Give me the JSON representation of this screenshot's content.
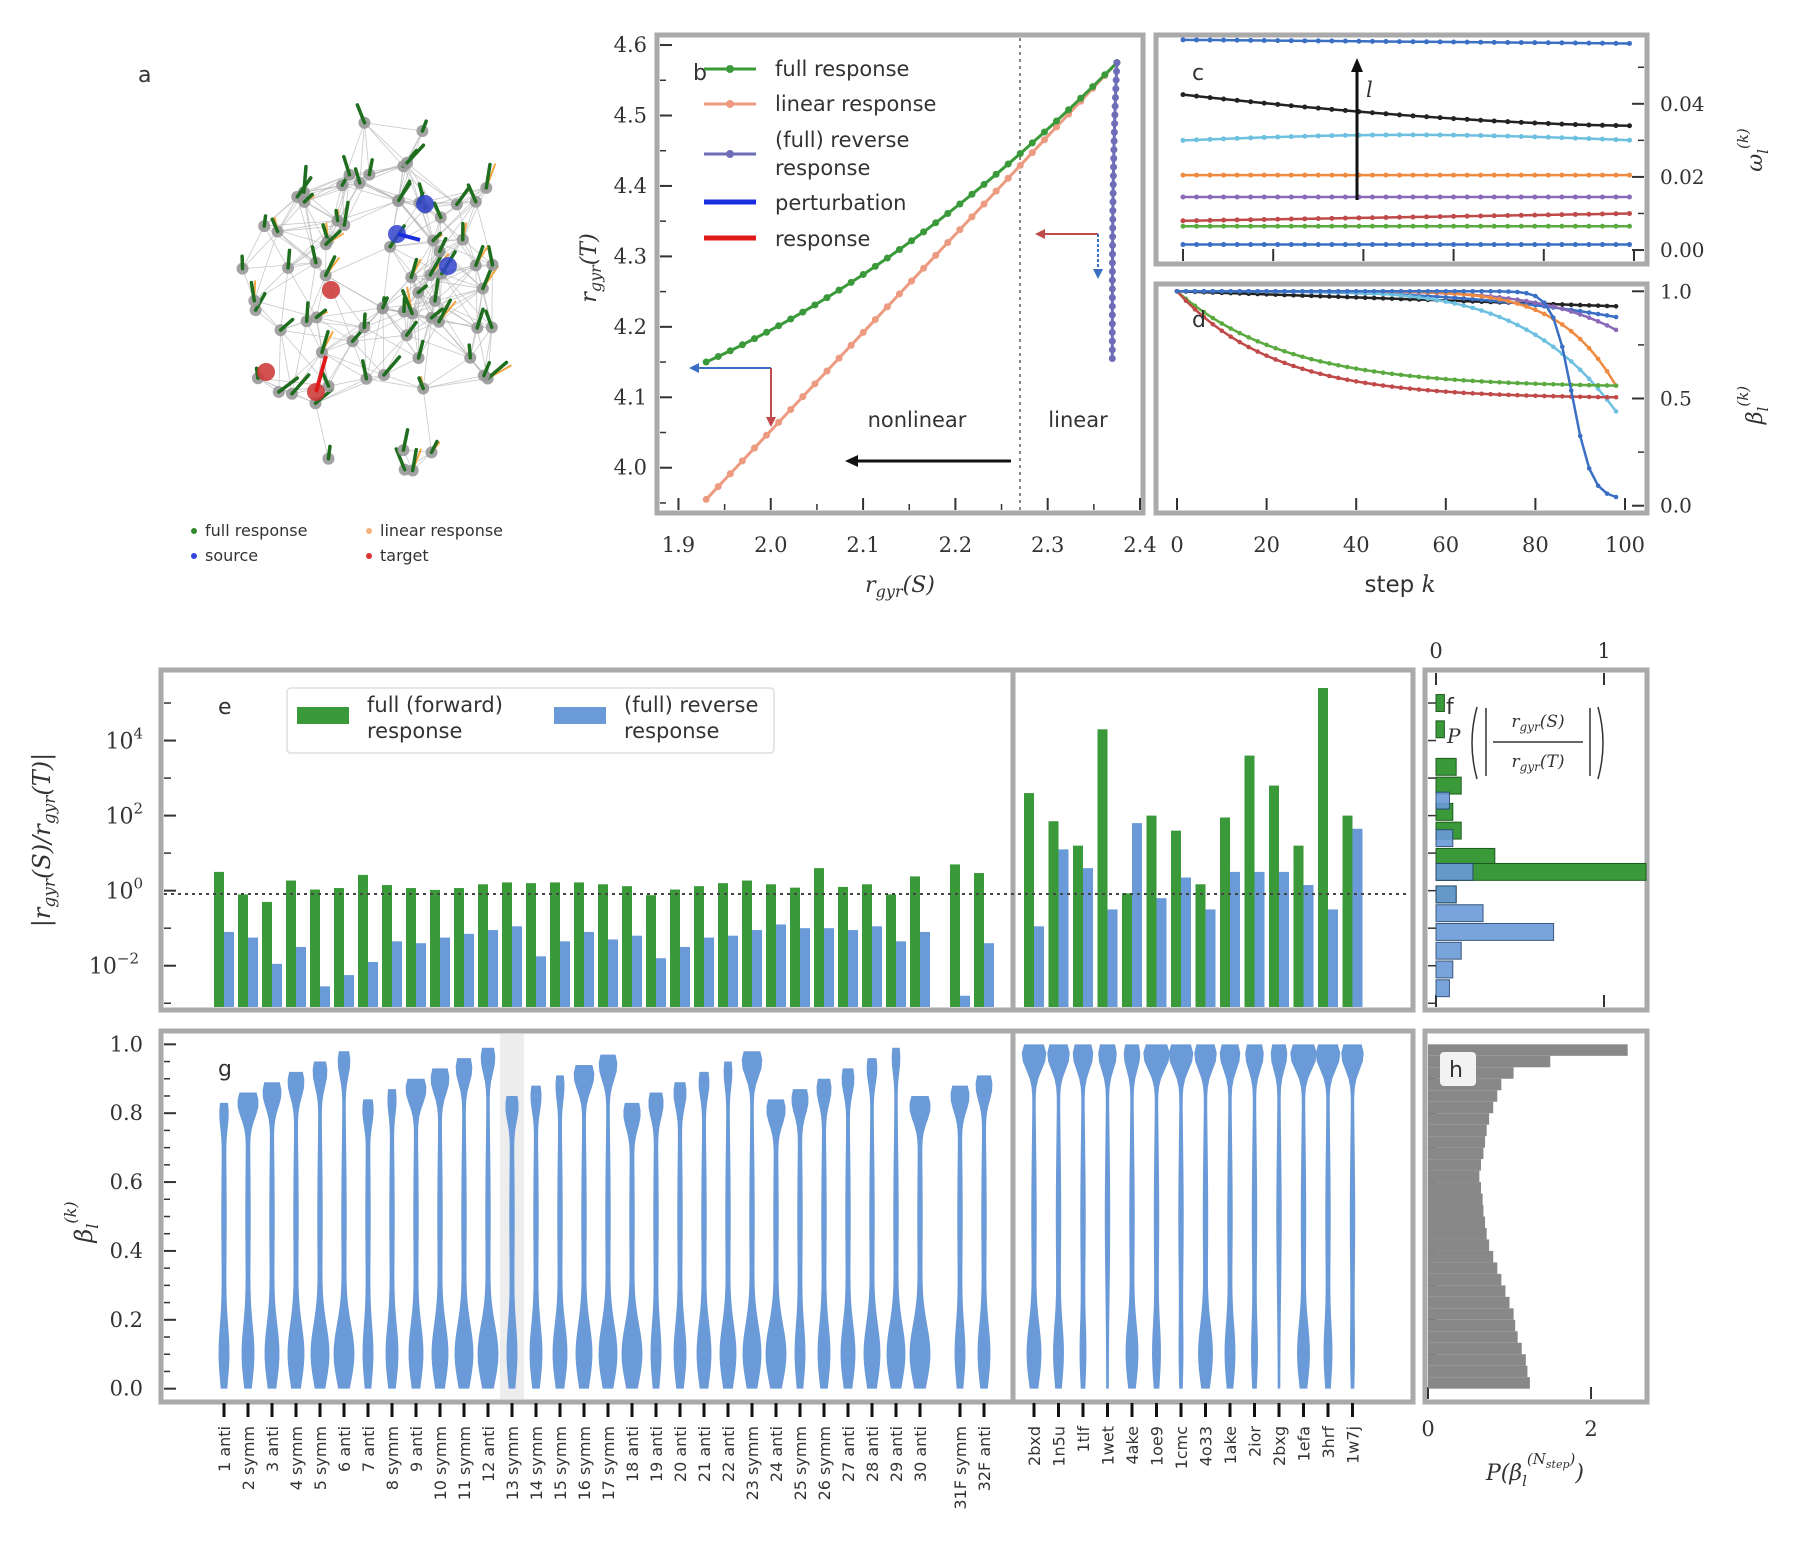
{
  "colors": {
    "green": "#3a9a3a",
    "salmon": "#ec9b80",
    "purple": "#6e6eb8",
    "blue": "#6a9ad8",
    "red": "#c04a4a",
    "gray": "#aaaaaa",
    "black": "#222222"
  },
  "panel_a": {
    "label": "a",
    "legend": [
      {
        "text": "full response",
        "color": "#2f8a2f"
      },
      {
        "text": "linear response",
        "color": "#f5b27a"
      },
      {
        "text": "source",
        "color": "#3344dd"
      },
      {
        "text": "target",
        "color": "#dd3333"
      }
    ]
  },
  "chart_data": [
    {
      "id": "b",
      "type": "line",
      "label": "b",
      "xlabel": "r_gyr(S)",
      "ylabel": "r_gyr(T)",
      "xlim": [
        1.88,
        2.4
      ],
      "ylim": [
        3.94,
        4.61
      ],
      "xticks": [
        "1.9",
        "2.0",
        "2.1",
        "2.2",
        "2.3",
        "2.4"
      ],
      "yticks": [
        "4.0",
        "4.1",
        "4.2",
        "4.3",
        "4.4",
        "4.5",
        "4.6"
      ],
      "legend": [
        "full response",
        "linear response",
        "(full) reverse",
        "response",
        "perturbation",
        "response"
      ],
      "annotations": [
        "nonlinear",
        "linear"
      ],
      "divider_x": 2.27,
      "series": [
        {
          "name": "full response",
          "x_range": [
            1.93,
            2.375
          ],
          "y_range": [
            4.15,
            4.575
          ],
          "shape": "concave"
        },
        {
          "name": "linear response",
          "x_range": [
            1.93,
            2.375
          ],
          "y_range": [
            3.955,
            4.575
          ],
          "shape": "linear"
        },
        {
          "name": "(full) reverse response",
          "x_range": [
            2.37,
            2.375
          ],
          "y_range": [
            4.155,
            4.575
          ],
          "shape": "vertical"
        }
      ]
    },
    {
      "id": "c",
      "type": "line",
      "label": "c",
      "ylabel": "omega_l^(k)",
      "ylim": [
        -0.003,
        0.058
      ],
      "yticks": [
        "0.00",
        "0.02",
        "0.04"
      ],
      "arrow_label": "l",
      "series": [
        {
          "color": "#3a6fc4",
          "start": 0.0575,
          "end": 0.0565
        },
        {
          "color": "#222222",
          "start": 0.0425,
          "end": 0.034
        },
        {
          "color": "#6ec0e0",
          "start": 0.03,
          "end": 0.03
        },
        {
          "color": "#f08a40",
          "start": 0.0205,
          "end": 0.0205
        },
        {
          "color": "#8a6ab8",
          "start": 0.0145,
          "end": 0.0145
        },
        {
          "color": "#c04a4a",
          "start": 0.008,
          "end": 0.01
        },
        {
          "color": "#5aaa40",
          "start": 0.0065,
          "end": 0.0065
        },
        {
          "color": "#3a6fc4",
          "start": 0.0015,
          "end": 0.0015
        }
      ]
    },
    {
      "id": "d",
      "type": "line",
      "label": "d",
      "xlabel": "step k",
      "ylabel": "beta_l^(k)",
      "xlim": [
        0,
        100
      ],
      "ylim": [
        -0.02,
        1.02
      ],
      "xticks": [
        "0",
        "20",
        "40",
        "60",
        "80",
        "100"
      ],
      "yticks": [
        "0.0",
        "0.5",
        "1.0"
      ],
      "series": [
        {
          "color": "#222222",
          "end": 0.93
        },
        {
          "color": "#3a6fc4",
          "end": 0.88
        },
        {
          "color": "#8a6ab8",
          "end": 0.82
        },
        {
          "color": "#f08a40",
          "end": 0.56
        },
        {
          "color": "#6ec0e0",
          "end": 0.44
        },
        {
          "color": "#5aaa40",
          "end": 0.56
        },
        {
          "color": "#c04a4a",
          "end": 0.5
        },
        {
          "color": "#3a6fc4",
          "end": 0.03
        }
      ]
    },
    {
      "id": "e",
      "type": "bar",
      "label": "e",
      "ylabel": "|r_gyr(S)/r_gyr(T)|",
      "yscale": "log",
      "ylim_log10": [
        -3.1,
        5.8
      ],
      "yticks": [
        "10^-2",
        "10^0",
        "10^2",
        "10^4"
      ],
      "legend": [
        "full (forward)",
        "response",
        "(full) reverse",
        "response"
      ],
      "categories": [
        "1 anti",
        "2 symm",
        "3 anti",
        "4 symm",
        "5 symm",
        "6 anti",
        "7 anti",
        "8 symm",
        "9 anti",
        "10 symm",
        "11 symm",
        "12 anti",
        "13 symm",
        "14 symm",
        "15 symm",
        "16 symm",
        "17 symm",
        "18 anti",
        "19 anti",
        "20 anti",
        "21 anti",
        "22 anti",
        "23 symm",
        "24 anti",
        "25 symm",
        "26 symm",
        "27 anti",
        "28 anti",
        "29 anti",
        "30 anti",
        "31F symm",
        "32F anti",
        "2bxd",
        "1n5u",
        "1tlf",
        "1wet",
        "4ake",
        "1oe9",
        "1cmc",
        "4o33",
        "1ake",
        "2ior",
        "2bxg",
        "1efa",
        "3hrf",
        "1w7j"
      ],
      "series": [
        {
          "name": "full (forward) response",
          "log10_values": [
            0.5,
            -0.1,
            -0.3,
            0.27,
            0.03,
            0.07,
            0.42,
            0.15,
            0.07,
            0.02,
            0.07,
            0.17,
            0.22,
            0.2,
            0.22,
            0.22,
            0.17,
            0.12,
            -0.12,
            0.03,
            0.12,
            0.2,
            0.27,
            0.17,
            0.08,
            0.6,
            0.1,
            0.17,
            -0.1,
            0.38,
            0.7,
            0.47,
            2.6,
            1.85,
            1.2,
            4.3,
            -0.07,
            2.0,
            1.6,
            0.17,
            1.95,
            3.6,
            2.8,
            1.2,
            5.4,
            2.0
          ]
        },
        {
          "name": "(full) reverse response",
          "log10_values": [
            -1.1,
            -1.25,
            -1.95,
            -1.5,
            -2.55,
            -2.25,
            -1.9,
            -1.35,
            -1.4,
            -1.25,
            -1.15,
            -1.05,
            -0.95,
            -1.75,
            -1.35,
            -1.1,
            -1.3,
            -1.2,
            -1.8,
            -1.5,
            -1.25,
            -1.2,
            -1.05,
            -0.9,
            -1.0,
            -1.0,
            -1.05,
            -0.95,
            -1.35,
            -1.1,
            -2.8,
            -1.4,
            -0.95,
            1.1,
            0.6,
            -0.5,
            1.8,
            -0.2,
            0.35,
            -0.5,
            0.5,
            0.5,
            0.5,
            0.15,
            -0.5,
            1.65
          ]
        }
      ]
    },
    {
      "id": "f",
      "type": "bar",
      "label": "f",
      "orientation": "horizontal",
      "xlabel": "P(|r_gyr(S)/r_gyr(T)|)",
      "xticks": [
        "0",
        "1"
      ]
    },
    {
      "id": "g",
      "type": "violin",
      "label": "g",
      "ylabel": "beta_l^(k)",
      "ylim": [
        -0.03,
        1.03
      ],
      "yticks": [
        "0.0",
        "0.2",
        "0.4",
        "0.6",
        "0.8",
        "1.0"
      ],
      "highlight_category": "13 symm"
    },
    {
      "id": "h",
      "type": "bar",
      "label": "h",
      "orientation": "horizontal",
      "xlabel": "P(beta_l^(N_step))",
      "xticks": [
        "0",
        "2"
      ],
      "xlim": [
        0,
        2.65
      ],
      "bins": 30,
      "densities": [
        1.25,
        1.22,
        1.2,
        1.15,
        1.1,
        1.07,
        1.05,
        1.0,
        0.95,
        0.9,
        0.85,
        0.8,
        0.75,
        0.72,
        0.7,
        0.68,
        0.67,
        0.65,
        0.63,
        0.65,
        0.68,
        0.7,
        0.72,
        0.75,
        0.8,
        0.85,
        0.9,
        1.05,
        1.5,
        2.45
      ]
    }
  ]
}
